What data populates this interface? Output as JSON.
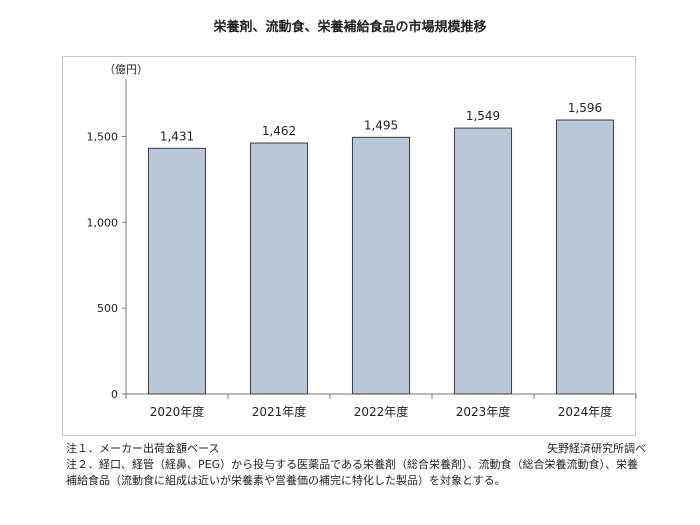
{
  "title": "栄養剤、流動食、栄養補給食品の市場規模推移",
  "chart_data": {
    "type": "bar",
    "unit_label": "（億円）",
    "categories": [
      "2020年度",
      "2021年度",
      "2022年度",
      "2023年度",
      "2024年度"
    ],
    "values": [
      1431,
      1462,
      1495,
      1549,
      1596
    ],
    "data_labels": [
      "1,431",
      "1,462",
      "1,495",
      "1,549",
      "1,596"
    ],
    "ylim": [
      0,
      1800
    ],
    "yticks": [
      0,
      500,
      1000,
      1500
    ],
    "ytick_labels": [
      "0",
      "500",
      "1,000",
      "1,500"
    ],
    "bar_color": "#b9c7d9",
    "bar_edge_color": "#3c3c3c",
    "grid": false,
    "legend": "none"
  },
  "notes": {
    "note1": "注１．メーカー出荷金額ベース",
    "source": "矢野経済研究所調べ",
    "note2": "注２．経口、経管（経鼻、PEG）から投与する医薬品である栄養剤（総合栄養剤）、流動食（総合栄養流動食）、栄養補給食品（流動食に組成は近いが栄養素や営養価の補完に特化した製品）を対象とする。"
  }
}
